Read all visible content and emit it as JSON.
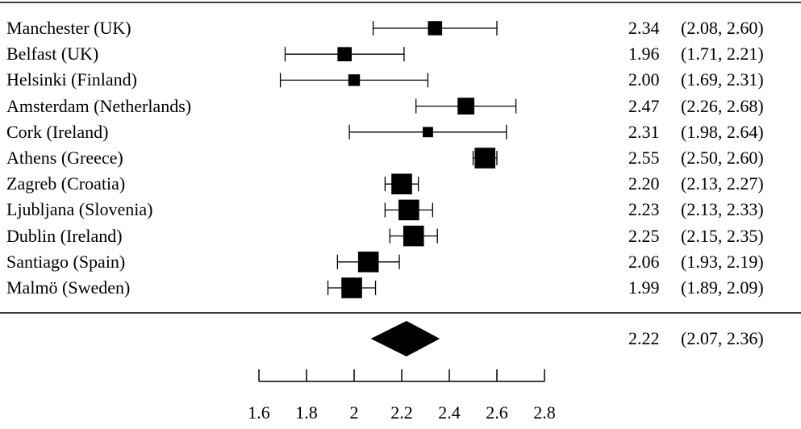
{
  "chart_data": {
    "type": "forest",
    "title": "",
    "xlabel": "",
    "xlim": [
      1.6,
      2.8
    ],
    "x_ticks": [
      1.6,
      1.8,
      2.0,
      2.2,
      2.4,
      2.6,
      2.8
    ],
    "x_tick_labels": [
      "1.6",
      "1.8",
      "2",
      "2.2",
      "2.4",
      "2.6",
      "2.8"
    ],
    "studies": [
      {
        "label": "Manchester (UK)",
        "estimate": 2.34,
        "lower": 2.08,
        "upper": 2.6,
        "estimate_text": "2.34",
        "ci_text": "(2.08, 2.60)",
        "weight": 1.2
      },
      {
        "label": "Belfast (UK)",
        "estimate": 1.96,
        "lower": 1.71,
        "upper": 2.21,
        "estimate_text": "1.96",
        "ci_text": "(1.71, 2.21)",
        "weight": 1.2
      },
      {
        "label": "Helsinki (Finland)",
        "estimate": 2.0,
        "lower": 1.69,
        "upper": 2.31,
        "estimate_text": "2.00",
        "ci_text": "(1.69, 2.31)",
        "weight": 0.8
      },
      {
        "label": "Amsterdam (Netherlands)",
        "estimate": 2.47,
        "lower": 2.26,
        "upper": 2.68,
        "estimate_text": "2.47",
        "ci_text": "(2.26, 2.68)",
        "weight": 1.6
      },
      {
        "label": "Cork (Ireland)",
        "estimate": 2.31,
        "lower": 1.98,
        "upper": 2.64,
        "estimate_text": "2.31",
        "ci_text": "(1.98, 2.64)",
        "weight": 0.6
      },
      {
        "label": "Athens (Greece)",
        "estimate": 2.55,
        "lower": 2.5,
        "upper": 2.6,
        "estimate_text": "2.55",
        "ci_text": "(2.50, 2.60)",
        "weight": 2.2
      },
      {
        "label": "Zagreb (Croatia)",
        "estimate": 2.2,
        "lower": 2.13,
        "upper": 2.27,
        "estimate_text": "2.20",
        "ci_text": "(2.13, 2.27)",
        "weight": 2.2
      },
      {
        "label": "Ljubljana (Slovenia)",
        "estimate": 2.23,
        "lower": 2.13,
        "upper": 2.33,
        "estimate_text": "2.23",
        "ci_text": "(2.13, 2.33)",
        "weight": 2.2
      },
      {
        "label": "Dublin (Ireland)",
        "estimate": 2.25,
        "lower": 2.15,
        "upper": 2.35,
        "estimate_text": "2.25",
        "ci_text": "(2.15, 2.35)",
        "weight": 2.2
      },
      {
        "label": "Santiago (Spain)",
        "estimate": 2.06,
        "lower": 1.93,
        "upper": 2.19,
        "estimate_text": "2.06",
        "ci_text": "(1.93, 2.19)",
        "weight": 2.2
      },
      {
        "label": "Malmö (Sweden)",
        "estimate": 1.99,
        "lower": 1.89,
        "upper": 2.09,
        "estimate_text": "1.99",
        "ci_text": "(1.89, 2.09)",
        "weight": 2.2
      }
    ],
    "pooled": {
      "estimate": 2.22,
      "lower": 2.07,
      "upper": 2.36,
      "estimate_text": "2.22",
      "ci_text": "(2.07, 2.36)"
    }
  }
}
